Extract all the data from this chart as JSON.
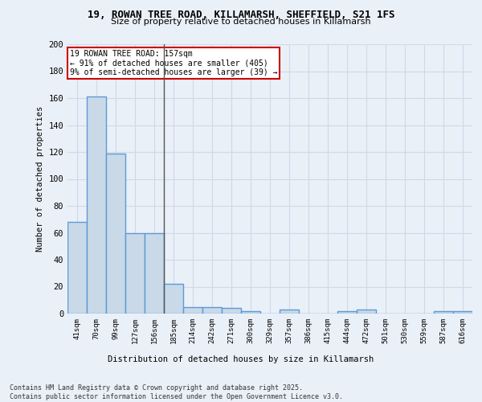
{
  "title_line1": "19, ROWAN TREE ROAD, KILLAMARSH, SHEFFIELD, S21 1FS",
  "title_line2": "Size of property relative to detached houses in Killamarsh",
  "xlabel": "Distribution of detached houses by size in Killamarsh",
  "ylabel": "Number of detached properties",
  "categories": [
    "41sqm",
    "70sqm",
    "99sqm",
    "127sqm",
    "156sqm",
    "185sqm",
    "214sqm",
    "242sqm",
    "271sqm",
    "300sqm",
    "329sqm",
    "357sqm",
    "386sqm",
    "415sqm",
    "444sqm",
    "472sqm",
    "501sqm",
    "530sqm",
    "559sqm",
    "587sqm",
    "616sqm"
  ],
  "values": [
    68,
    161,
    119,
    60,
    60,
    22,
    5,
    5,
    4,
    2,
    0,
    3,
    0,
    0,
    2,
    3,
    0,
    0,
    0,
    2,
    2
  ],
  "bar_color": "#c9d9e8",
  "bar_edge_color": "#5b9bd5",
  "bar_edge_width": 1.0,
  "grid_color": "#d0d8e8",
  "background_color": "#eaf0f8",
  "marker_bin_index": 4,
  "marker_label": "19 ROWAN TREE ROAD: 157sqm",
  "marker_line1": "← 91% of detached houses are smaller (405)",
  "marker_line2": "9% of semi-detached houses are larger (39) →",
  "marker_color": "#cc0000",
  "ylim": [
    0,
    200
  ],
  "yticks": [
    0,
    20,
    40,
    60,
    80,
    100,
    120,
    140,
    160,
    180,
    200
  ],
  "footer_line1": "Contains HM Land Registry data © Crown copyright and database right 2025.",
  "footer_line2": "Contains public sector information licensed under the Open Government Licence v3.0."
}
